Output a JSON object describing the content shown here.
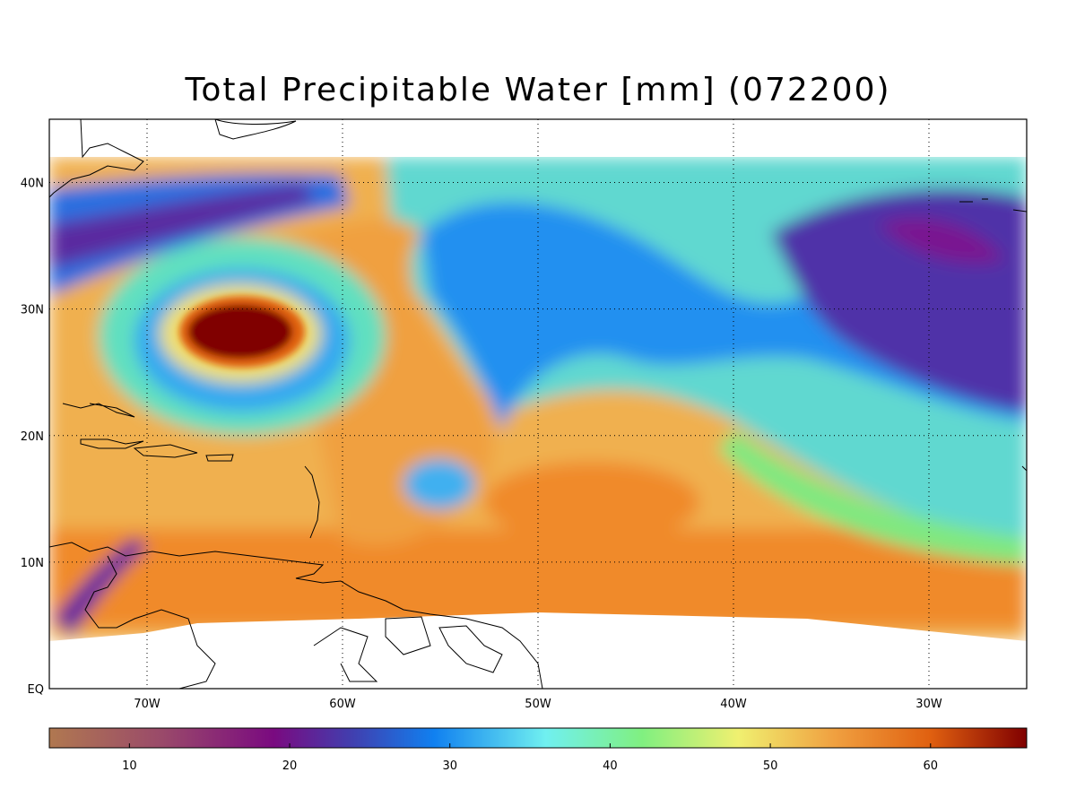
{
  "title": "Total Precipitable Water [mm]  (072200)",
  "map": {
    "lon_range": [
      -75,
      -25
    ],
    "lat_range": [
      0,
      45
    ],
    "lat_ticks": [
      {
        "value": 40,
        "label": "40N"
      },
      {
        "value": 30,
        "label": "30N"
      },
      {
        "value": 20,
        "label": "20N"
      },
      {
        "value": 10,
        "label": "10N"
      },
      {
        "value": 0,
        "label": "EQ"
      }
    ],
    "lon_ticks": [
      {
        "value": -70,
        "label": "70W"
      },
      {
        "value": -60,
        "label": "60W"
      },
      {
        "value": -50,
        "label": "50W"
      },
      {
        "value": -40,
        "label": "40W"
      },
      {
        "value": -30,
        "label": "30W"
      }
    ],
    "grid": "dotted",
    "features": [
      "hurricane-eye-high-moisture",
      "dry-tongue-central-atlantic",
      "moist-tropics-south"
    ]
  },
  "colorbar": {
    "range": [
      5,
      66
    ],
    "ticks": [
      {
        "value": 10,
        "label": "10"
      },
      {
        "value": 20,
        "label": "20"
      },
      {
        "value": 30,
        "label": "30"
      },
      {
        "value": 40,
        "label": "40"
      },
      {
        "value": 50,
        "label": "50"
      },
      {
        "value": 60,
        "label": "60"
      }
    ],
    "stops": [
      {
        "value": 5,
        "color": "#b07850"
      },
      {
        "value": 12,
        "color": "#9a4a6a"
      },
      {
        "value": 19,
        "color": "#7a0a80"
      },
      {
        "value": 24,
        "color": "#4040b0"
      },
      {
        "value": 29,
        "color": "#1080f0"
      },
      {
        "value": 36,
        "color": "#70f0f0"
      },
      {
        "value": 42,
        "color": "#80f080"
      },
      {
        "value": 48,
        "color": "#f0f070"
      },
      {
        "value": 54,
        "color": "#f0a040"
      },
      {
        "value": 60,
        "color": "#e06010"
      },
      {
        "value": 66,
        "color": "#800000"
      }
    ]
  }
}
